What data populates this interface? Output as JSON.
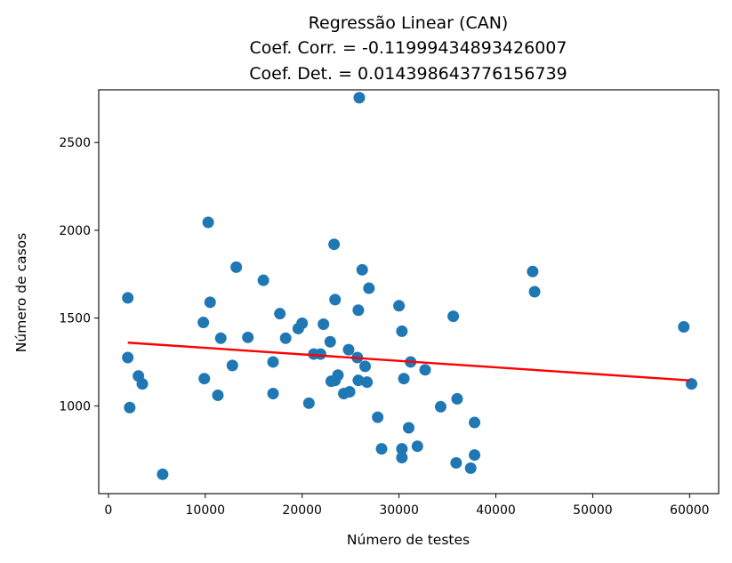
{
  "chart_data": {
    "type": "scatter",
    "title_lines": [
      "Regressão Linear (CAN)",
      "Coef. Corr. = -0.11999434893426007",
      "Coef. Det. = 0.014398643776156739"
    ],
    "xlabel": "Número de testes",
    "ylabel": "Número de casos",
    "xlim": [
      -1000,
      63000
    ],
    "ylim": [
      500,
      2800
    ],
    "xticks": [
      0,
      10000,
      20000,
      30000,
      40000,
      50000,
      60000
    ],
    "yticks": [
      1000,
      1500,
      2000,
      2500
    ],
    "grid": false,
    "colors": {
      "points": "#1f77b4",
      "regression": "#ff0000"
    },
    "regression_line": {
      "x": [
        2000,
        60000
      ],
      "y": [
        1360,
        1145
      ]
    },
    "points": [
      {
        "x": 2000,
        "y": 1615
      },
      {
        "x": 2000,
        "y": 1275
      },
      {
        "x": 2200,
        "y": 990
      },
      {
        "x": 3100,
        "y": 1170
      },
      {
        "x": 3500,
        "y": 1125
      },
      {
        "x": 5600,
        "y": 610
      },
      {
        "x": 9800,
        "y": 1475
      },
      {
        "x": 9900,
        "y": 1155
      },
      {
        "x": 10300,
        "y": 2045
      },
      {
        "x": 10500,
        "y": 1590
      },
      {
        "x": 11300,
        "y": 1060
      },
      {
        "x": 11600,
        "y": 1385
      },
      {
        "x": 12800,
        "y": 1230
      },
      {
        "x": 13200,
        "y": 1790
      },
      {
        "x": 14400,
        "y": 1390
      },
      {
        "x": 16000,
        "y": 1715
      },
      {
        "x": 17000,
        "y": 1250
      },
      {
        "x": 17000,
        "y": 1070
      },
      {
        "x": 17700,
        "y": 1525
      },
      {
        "x": 18300,
        "y": 1385
      },
      {
        "x": 19600,
        "y": 1440
      },
      {
        "x": 20000,
        "y": 1470
      },
      {
        "x": 20700,
        "y": 1015
      },
      {
        "x": 21200,
        "y": 1295
      },
      {
        "x": 21900,
        "y": 1295
      },
      {
        "x": 22200,
        "y": 1465
      },
      {
        "x": 22900,
        "y": 1365
      },
      {
        "x": 23000,
        "y": 1140
      },
      {
        "x": 23300,
        "y": 1920
      },
      {
        "x": 23400,
        "y": 1605
      },
      {
        "x": 23400,
        "y": 1145
      },
      {
        "x": 23700,
        "y": 1175
      },
      {
        "x": 24300,
        "y": 1070
      },
      {
        "x": 24800,
        "y": 1320
      },
      {
        "x": 24900,
        "y": 1080
      },
      {
        "x": 25700,
        "y": 1275
      },
      {
        "x": 25800,
        "y": 1545
      },
      {
        "x": 25800,
        "y": 1145
      },
      {
        "x": 25900,
        "y": 2755
      },
      {
        "x": 26200,
        "y": 1775
      },
      {
        "x": 26500,
        "y": 1225
      },
      {
        "x": 26700,
        "y": 1135
      },
      {
        "x": 26900,
        "y": 1670
      },
      {
        "x": 27800,
        "y": 935
      },
      {
        "x": 28200,
        "y": 755
      },
      {
        "x": 30000,
        "y": 1570
      },
      {
        "x": 30300,
        "y": 1425
      },
      {
        "x": 30300,
        "y": 755
      },
      {
        "x": 30300,
        "y": 705
      },
      {
        "x": 30500,
        "y": 1155
      },
      {
        "x": 31000,
        "y": 875
      },
      {
        "x": 31200,
        "y": 1250
      },
      {
        "x": 31900,
        "y": 770
      },
      {
        "x": 32700,
        "y": 1205
      },
      {
        "x": 34300,
        "y": 995
      },
      {
        "x": 35600,
        "y": 1510
      },
      {
        "x": 35900,
        "y": 675
      },
      {
        "x": 36000,
        "y": 1040
      },
      {
        "x": 37400,
        "y": 645
      },
      {
        "x": 37800,
        "y": 905
      },
      {
        "x": 37800,
        "y": 720
      },
      {
        "x": 43800,
        "y": 1765
      },
      {
        "x": 44000,
        "y": 1650
      },
      {
        "x": 59400,
        "y": 1450
      },
      {
        "x": 60200,
        "y": 1125
      }
    ]
  }
}
